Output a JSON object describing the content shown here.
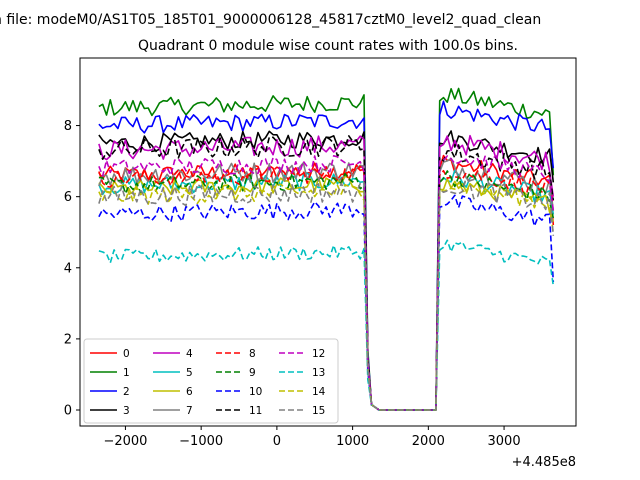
{
  "chart_data": {
    "type": "line",
    "suptitle": "n file: modeM0/AS1T05_185T01_9000006128_45817cztM0_level2_quad_clean",
    "title": "Quadrant 0 module wise count rates with 100.0s bins.",
    "offset_text": "+4.485e8",
    "xlabel": "",
    "ylabel": "",
    "xlim": [
      -2600,
      3950
    ],
    "ylim": [
      -0.45,
      9.9
    ],
    "xticks": [
      -2000,
      -1000,
      0,
      1000,
      2000,
      3000
    ],
    "xtick_labels": [
      "−2000",
      "−1000",
      "0",
      "1000",
      "2000",
      "3000"
    ],
    "yticks": [
      0,
      2,
      4,
      6,
      8
    ],
    "ytick_labels": [
      "0",
      "2",
      "4",
      "6",
      "8"
    ],
    "grid": false,
    "legend_position": "lower-left",
    "x_seg1": [
      -2350,
      1150
    ],
    "x_seg2": [
      2150,
      3650
    ],
    "gap_x": [
      1200,
      1250,
      1350,
      2050,
      2100
    ],
    "gap_values": [
      1.3,
      0.15,
      0.0,
      0.0,
      0.0
    ],
    "series": [
      {
        "name": "0",
        "color": "#ff0000",
        "dash": "solid",
        "base1": 6.6,
        "base2": 7.0,
        "end": 5.2,
        "noise": 0.25
      },
      {
        "name": "1",
        "color": "#008000",
        "dash": "solid",
        "base1": 8.5,
        "base2": 8.9,
        "end": 6.6,
        "noise": 0.25
      },
      {
        "name": "2",
        "color": "#0000ff",
        "dash": "solid",
        "base1": 8.0,
        "base2": 8.5,
        "end": 6.8,
        "noise": 0.25
      },
      {
        "name": "3",
        "color": "#000000",
        "dash": "solid",
        "base1": 7.5,
        "base2": 7.7,
        "end": 6.4,
        "noise": 0.25
      },
      {
        "name": "4",
        "color": "#bf00bf",
        "dash": "solid",
        "base1": 7.3,
        "base2": 7.6,
        "end": 6.0,
        "noise": 0.3
      },
      {
        "name": "5",
        "color": "#00bfbf",
        "dash": "solid",
        "base1": 6.3,
        "base2": 6.6,
        "end": 5.5,
        "noise": 0.25
      },
      {
        "name": "6",
        "color": "#bfbf00",
        "dash": "solid",
        "base1": 6.2,
        "base2": 6.4,
        "end": 5.3,
        "noise": 0.25
      },
      {
        "name": "7",
        "color": "#808080",
        "dash": "solid",
        "base1": 6.6,
        "base2": 6.9,
        "end": 5.6,
        "noise": 0.3
      },
      {
        "name": "8",
        "color": "#ff0000",
        "dash": "dashed",
        "base1": 6.5,
        "base2": 6.8,
        "end": 5.8,
        "noise": 0.25
      },
      {
        "name": "9",
        "color": "#008000",
        "dash": "dashed",
        "base1": 6.3,
        "base2": 6.6,
        "end": 5.4,
        "noise": 0.25
      },
      {
        "name": "10",
        "color": "#0000ff",
        "dash": "dashed",
        "base1": 5.5,
        "base2": 5.9,
        "end": 3.6,
        "noise": 0.25
      },
      {
        "name": "11",
        "color": "#000000",
        "dash": "dashed",
        "base1": 7.3,
        "base2": 7.3,
        "end": 5.9,
        "noise": 0.3
      },
      {
        "name": "12",
        "color": "#bf00bf",
        "dash": "dashed",
        "base1": 6.8,
        "base2": 7.2,
        "end": 5.6,
        "noise": 0.25
      },
      {
        "name": "13",
        "color": "#00bfbf",
        "dash": "dashed",
        "base1": 4.3,
        "base2": 4.7,
        "end": 3.5,
        "noise": 0.2
      },
      {
        "name": "14",
        "color": "#bfbf00",
        "dash": "dashed",
        "base1": 6.0,
        "base2": 6.4,
        "end": 5.0,
        "noise": 0.25
      },
      {
        "name": "15",
        "color": "#808080",
        "dash": "dashed",
        "base1": 6.0,
        "base2": 6.4,
        "end": 4.9,
        "noise": 0.3
      }
    ]
  }
}
